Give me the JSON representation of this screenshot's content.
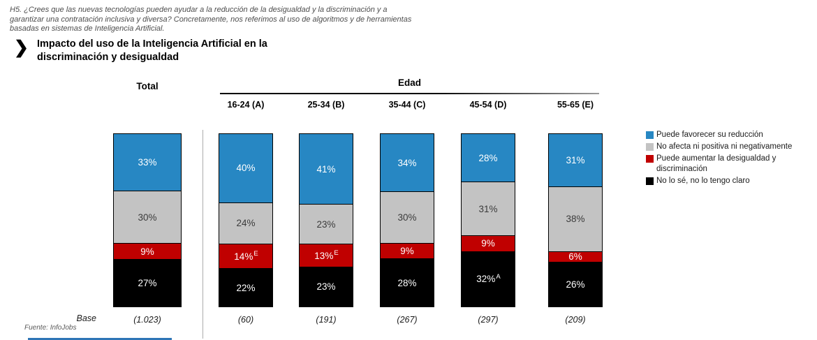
{
  "header": {
    "question": "H5. ¿Crees que las nuevas tecnologías pueden ayudar a la reducción de la desigualdad y la discriminación y a garantizar una contratación inclusiva y diversa? Concretamente, nos referimos al uso de algoritmos y de herramientas basadas en sistemas de Inteligencia Artificial.",
    "arrow_icon": "❯",
    "title_line1": "Impacto del uso de la Inteligencia Artificial en la",
    "title_line2": "discriminación y desigualdad"
  },
  "columns": {
    "total_label": "Total",
    "group_label": "Edad"
  },
  "base_label": "Base",
  "fuente": "Fuente: InfoJobs",
  "colors": {
    "blue": "#2787C3",
    "gray": "#C3C3C3",
    "red": "#C00000",
    "black": "#000000",
    "footer_blue": "#2E75B6"
  },
  "legend": [
    {
      "color": "#2787C3",
      "label": "Puede favorecer su reducción"
    },
    {
      "color": "#C3C3C3",
      "label": "No afecta ni positiva ni negativamente"
    },
    {
      "color": "#C00000",
      "label": "Puede aumentar la desigualdad y discriminación"
    },
    {
      "color": "#000000",
      "label": "No lo sé, no lo tengo claro"
    }
  ],
  "chart_data": {
    "type": "bar",
    "subtype": "stacked-100-column",
    "title": "Impacto del uso de la Inteligencia Artificial en la discriminación y desigualdad",
    "categories": [
      "Total",
      "16-24 (A)",
      "25-34 (B)",
      "35-44 (C)",
      "45-54 (D)",
      "55-65 (E)"
    ],
    "group_header": "Edad",
    "series": [
      {
        "name": "Puede favorecer su reducción",
        "color": "#2787C3",
        "text_color": "#ffffff",
        "values": [
          33,
          40,
          41,
          34,
          28,
          31
        ],
        "superscripts": [
          "",
          "",
          "",
          "",
          "",
          ""
        ]
      },
      {
        "name": "No afecta ni positiva ni negativamente",
        "color": "#C3C3C3",
        "text_color": "#3b3b3b",
        "values": [
          30,
          24,
          23,
          30,
          31,
          38
        ],
        "superscripts": [
          "",
          "",
          "",
          "",
          "",
          ""
        ]
      },
      {
        "name": "Puede aumentar la desigualdad y discriminación",
        "color": "#C00000",
        "text_color": "#ffffff",
        "values": [
          9,
          14,
          13,
          9,
          9,
          6
        ],
        "superscripts": [
          "",
          "E",
          "E",
          "",
          "",
          ""
        ]
      },
      {
        "name": "No lo sé, no lo tengo claro",
        "color": "#000000",
        "text_color": "#ffffff",
        "values": [
          27,
          22,
          23,
          28,
          32,
          26
        ],
        "superscripts": [
          "",
          "",
          "",
          "",
          "A",
          ""
        ]
      }
    ],
    "bases": [
      "(1.023)",
      "(60)",
      "(191)",
      "(267)",
      "(297)",
      "(209)"
    ],
    "unit": "%",
    "legend_position": "right",
    "grid": false
  }
}
